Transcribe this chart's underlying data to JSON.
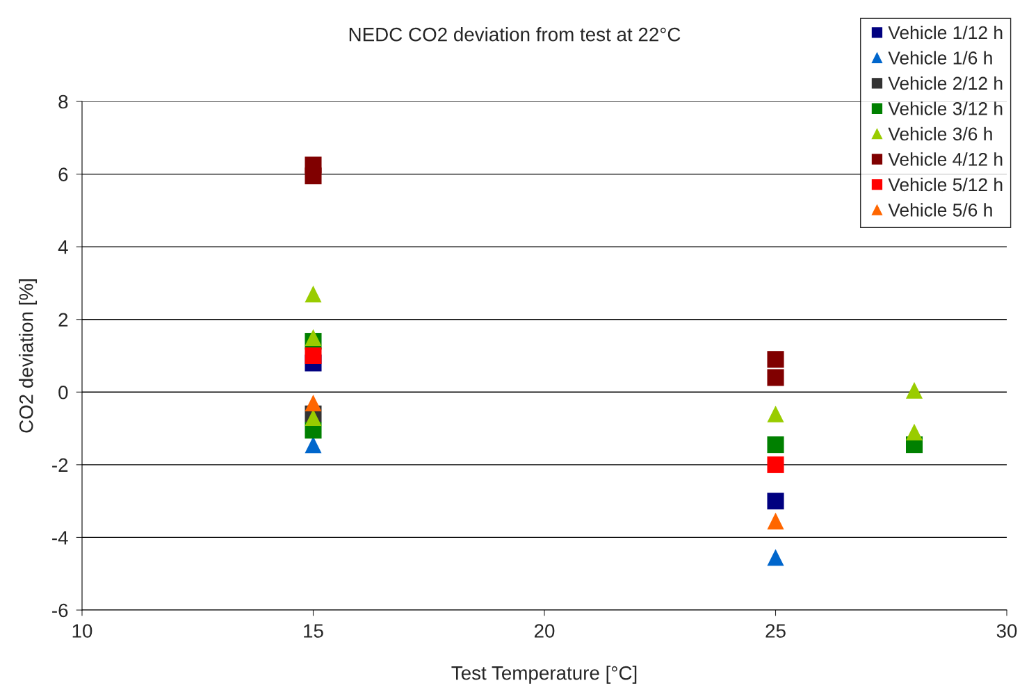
{
  "chart_data": {
    "type": "scatter",
    "title": "NEDC CO2 deviation from test at 22°C",
    "xlabel": "Test Temperature [°C]",
    "ylabel": "CO2 deviation [%]",
    "xlim": [
      10,
      30
    ],
    "xticks": [
      10,
      15,
      20,
      25,
      30
    ],
    "ylim": [
      -6,
      8
    ],
    "yticks": [
      -6,
      -4,
      -2,
      0,
      2,
      4,
      6,
      8
    ],
    "grid": "y",
    "legend": "top right",
    "series": [
      {
        "name": "Vehicle 1/12 h",
        "color": "#000080",
        "marker": "square",
        "x": [
          15,
          25
        ],
        "values": [
          0.8,
          -3.0
        ]
      },
      {
        "name": "Vehicle 1/6 h",
        "color": "#0066cc",
        "marker": "triangle",
        "x": [
          15,
          25
        ],
        "values": [
          -1.45,
          -4.55
        ]
      },
      {
        "name": "Vehicle 2/12 h",
        "color": "#333333",
        "marker": "square",
        "x": [
          15
        ],
        "values": [
          -0.6
        ]
      },
      {
        "name": "Vehicle 3/12 h",
        "color": "#008000",
        "marker": "square",
        "x": [
          15,
          15,
          25,
          28
        ],
        "values": [
          1.4,
          -1.05,
          -1.45,
          -1.45
        ]
      },
      {
        "name": "Vehicle 3/6 h",
        "color": "#99cc00",
        "marker": "triangle",
        "x": [
          15,
          15,
          15,
          25,
          28,
          28
        ],
        "values": [
          2.7,
          1.5,
          -0.7,
          -0.6,
          0.05,
          -1.1
        ]
      },
      {
        "name": "Vehicle 4/12 h",
        "color": "#800000",
        "marker": "square",
        "x": [
          15,
          15,
          25,
          25
        ],
        "values": [
          6.25,
          5.95,
          0.9,
          0.4
        ]
      },
      {
        "name": "Vehicle 5/12 h",
        "color": "#ff0000",
        "marker": "square",
        "x": [
          15,
          25
        ],
        "values": [
          1.0,
          -2.0
        ]
      },
      {
        "name": "Vehicle 5/6 h",
        "color": "#ff6600",
        "marker": "triangle",
        "x": [
          15,
          25
        ],
        "values": [
          -0.3,
          -3.55
        ]
      }
    ]
  }
}
